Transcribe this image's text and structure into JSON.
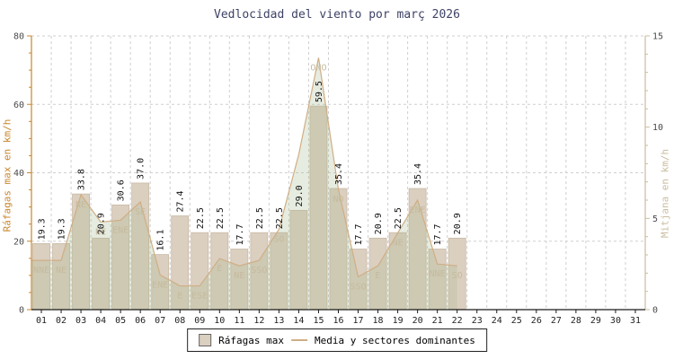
{
  "chart_data": {
    "type": "bar",
    "title": "Vedlocidad del viento por març 2026",
    "categories": [
      "01",
      "02",
      "03",
      "04",
      "05",
      "06",
      "07",
      "08",
      "09",
      "10",
      "11",
      "12",
      "13",
      "14",
      "15",
      "16",
      "17",
      "18",
      "19",
      "20",
      "21",
      "22",
      "23",
      "24",
      "25",
      "26",
      "27",
      "28",
      "29",
      "30",
      "31"
    ],
    "series": [
      {
        "name": "Ráfagas max",
        "type": "bar",
        "axis": "left",
        "values": [
          19.3,
          19.3,
          33.8,
          20.9,
          30.6,
          37.0,
          16.1,
          27.4,
          22.5,
          22.5,
          17.7,
          22.5,
          22.5,
          29.0,
          59.5,
          35.4,
          17.7,
          20.9,
          22.5,
          35.4,
          17.7,
          20.9,
          null,
          null,
          null,
          null,
          null,
          null,
          null,
          null,
          null
        ]
      },
      {
        "name": "Media y sectores dominantes",
        "type": "area-line",
        "axis": "right",
        "values": [
          2.7,
          2.7,
          6.3,
          4.8,
          4.9,
          5.9,
          1.9,
          1.3,
          1.3,
          2.8,
          2.4,
          2.7,
          4.4,
          8.5,
          13.8,
          6.6,
          1.8,
          2.4,
          4.2,
          6.0,
          2.5,
          2.4,
          null,
          null,
          null,
          null,
          null,
          null,
          null,
          null,
          null
        ],
        "sectors": [
          "NNE",
          "NE",
          "NE",
          "NE",
          "ENE",
          "SE",
          "ENE",
          "E",
          "ESE",
          "E",
          "NE",
          "SSO",
          "SO",
          "",
          "ONO",
          "NO",
          "SSO",
          "E",
          "NE",
          "ENE",
          "NNE",
          "SO",
          "",
          "",
          "",
          "",
          "",
          "",
          "",
          "",
          ""
        ]
      }
    ],
    "left_axis": {
      "label": "Ráfagas max en km/h",
      "min": 0,
      "max": 80,
      "ticks": [
        0,
        20,
        40,
        60,
        80
      ],
      "minor_step": 5
    },
    "right_axis": {
      "label": "Mitjana en km/h",
      "min": 0,
      "max": 15,
      "ticks": [
        0,
        5,
        10,
        15
      ],
      "minor_step": 1
    },
    "xlabel": "",
    "ylabel": "Ráfagas max en km/h",
    "grid": true,
    "legend": [
      {
        "label": "Ráfagas max",
        "swatch": "box"
      },
      {
        "label": "Media y sectores dominantes",
        "swatch": "line"
      }
    ],
    "legend_position": "bottom-center"
  },
  "colors": {
    "title": "#3e4266",
    "left_axis": "#c8862e",
    "right_axis_line": "#c9bd9e",
    "right_axis_text": "#c9bd9e",
    "tick_text": "#4a4a4a",
    "x_tick_text": "#222222",
    "grid": "#cfcfcf",
    "x_axis": "#1a1a1a",
    "bar_fill": "#dbcfc0",
    "bar_border": "#c9b9a5",
    "area_fill": "#a8bb90",
    "media_line": "#cfae85",
    "sector_text": "#c6ba9f",
    "value_text": "#111111",
    "legend_border": "#222222"
  }
}
